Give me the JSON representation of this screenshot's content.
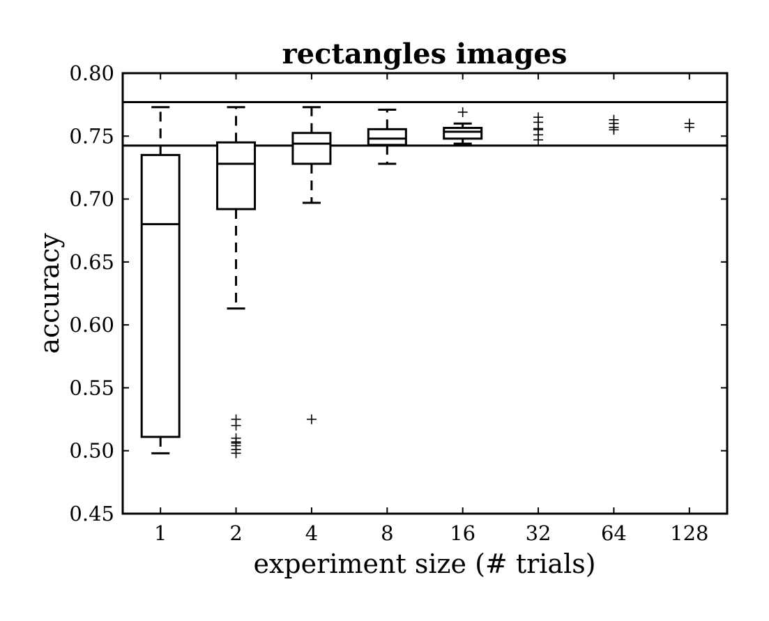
{
  "chart_data": {
    "type": "box",
    "title": "rectangles images",
    "xlabel": "experiment size (# trials)",
    "ylabel": "accuracy",
    "ylim": [
      0.45,
      0.8
    ],
    "yticks": [
      "0.45",
      "0.50",
      "0.55",
      "0.60",
      "0.65",
      "0.70",
      "0.75",
      "0.80"
    ],
    "categories": [
      "1",
      "2",
      "4",
      "8",
      "16",
      "32",
      "64",
      "128"
    ],
    "reference_lines": [
      0.777,
      0.7425
    ],
    "boxes": [
      {
        "category": "1",
        "whisker_low": 0.498,
        "q1": 0.511,
        "median": 0.68,
        "q3": 0.735,
        "whisker_high": 0.773,
        "outliers": []
      },
      {
        "category": "2",
        "whisker_low": 0.613,
        "q1": 0.692,
        "median": 0.728,
        "q3": 0.745,
        "whisker_high": 0.773,
        "outliers": [
          0.498,
          0.501,
          0.504,
          0.506,
          0.507,
          0.51,
          0.52,
          0.525
        ]
      },
      {
        "category": "4",
        "whisker_low": 0.697,
        "q1": 0.728,
        "median": 0.744,
        "q3": 0.7525,
        "whisker_high": 0.773,
        "outliers": [
          0.525
        ]
      },
      {
        "category": "8",
        "whisker_low": 0.728,
        "q1": 0.743,
        "median": 0.748,
        "q3": 0.7555,
        "whisker_high": 0.771,
        "outliers": []
      },
      {
        "category": "16",
        "whisker_low": 0.744,
        "q1": 0.748,
        "median": 0.7535,
        "q3": 0.7565,
        "whisker_high": 0.76,
        "outliers": [
          0.769
        ]
      },
      {
        "category": "32",
        "whisker_low": null,
        "q1": null,
        "median": null,
        "q3": null,
        "whisker_high": null,
        "outliers": [
          0.747,
          0.751,
          0.755,
          0.756,
          0.761,
          0.765
        ]
      },
      {
        "category": "64",
        "whisker_low": null,
        "q1": null,
        "median": null,
        "q3": null,
        "whisker_high": null,
        "outliers": [
          0.755,
          0.757,
          0.76,
          0.763
        ]
      },
      {
        "category": "128",
        "whisker_low": null,
        "q1": null,
        "median": null,
        "q3": null,
        "whisker_high": null,
        "outliers": [
          0.757,
          0.76
        ]
      }
    ]
  }
}
